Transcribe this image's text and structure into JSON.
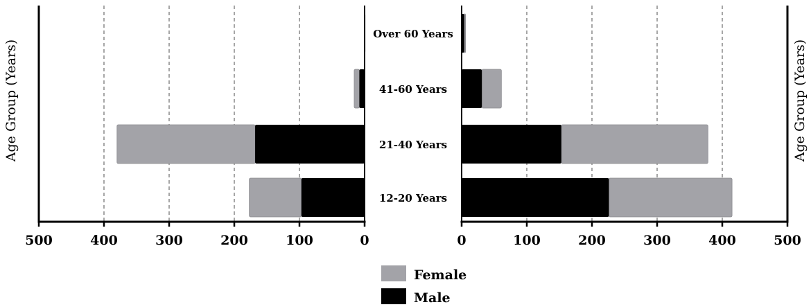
{
  "chart_data": {
    "type": "bar",
    "orientation": "horizontal",
    "layout": "two-panel mirrored",
    "categories": [
      "Over 60 Years",
      "41-60 Years",
      "21-40 Years",
      "12-20 Years"
    ],
    "ylabel": "Age Group (Years)",
    "grid": "vertical dashed",
    "legend_position": "bottom-center",
    "colors": {
      "Female": "#a3a3a8",
      "Male": "#000000"
    },
    "panels": [
      {
        "name": "left",
        "direction": "reversed",
        "xlim": [
          0,
          500
        ],
        "ticks": [
          "500",
          "400",
          "300",
          "200",
          "100",
          "0"
        ],
        "tick_values": [
          500,
          400,
          300,
          200,
          100,
          0
        ],
        "bars": [
          {
            "category": "Over 60 Years",
            "Male": 1,
            "Female": 0
          },
          {
            "category": "41-60 Years",
            "Male": 8,
            "Female": 8
          },
          {
            "category": "21-40 Years",
            "Male": 168,
            "Female": 212
          },
          {
            "category": "12-20 Years",
            "Male": 97,
            "Female": 80
          }
        ]
      },
      {
        "name": "right",
        "direction": "normal",
        "xlim": [
          0,
          500
        ],
        "ticks": [
          "0",
          "100",
          "200",
          "300",
          "400",
          "500"
        ],
        "tick_values": [
          0,
          100,
          200,
          300,
          400,
          500
        ],
        "bars": [
          {
            "category": "Over 60 Years",
            "Male": 4,
            "Female": 2
          },
          {
            "category": "41-60 Years",
            "Male": 31,
            "Female": 30
          },
          {
            "category": "21-40 Years",
            "Male": 153,
            "Female": 225
          },
          {
            "category": "12-20 Years",
            "Male": 226,
            "Female": 189
          }
        ]
      }
    ],
    "legend": [
      {
        "name": "Female",
        "color": "#a3a3a8"
      },
      {
        "name": "Male",
        "color": "#000000"
      }
    ]
  }
}
